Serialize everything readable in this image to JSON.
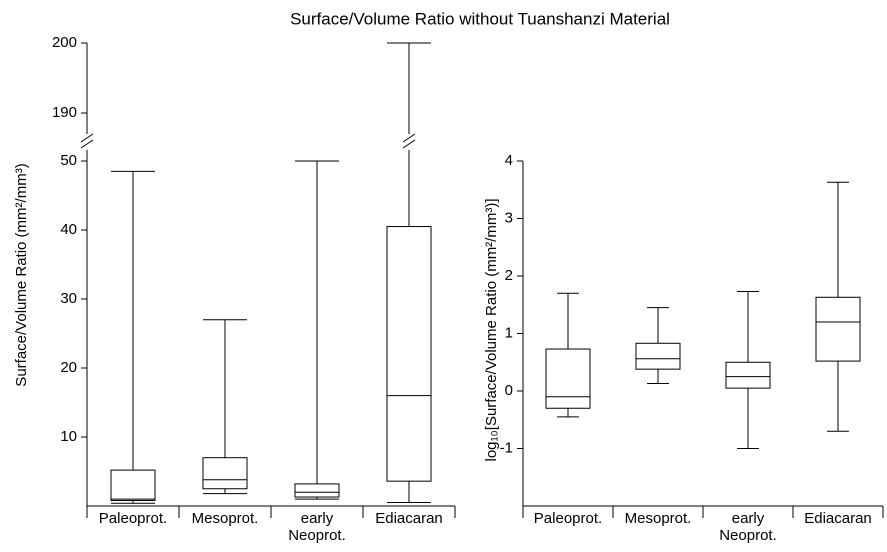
{
  "chart_data": [
    {
      "type": "box",
      "title": "Surface/Volume Ratio without Tuanshanzi Material",
      "ylabel": "Surface/Volume Ratio (mm²/mm³)",
      "categories": [
        "Paleoprot.",
        "Mesoprot.",
        "early Neoprot.",
        "Ediacaran"
      ],
      "min": [
        0.4,
        1.8,
        1.0,
        0.5
      ],
      "q1": [
        0.8,
        2.5,
        1.3,
        3.6
      ],
      "median": [
        1.0,
        3.8,
        2.0,
        16
      ],
      "q3": [
        5.2,
        7.0,
        3.2,
        40.5
      ],
      "max": [
        48.5,
        27,
        50,
        200
      ],
      "ylim": [
        0,
        200
      ],
      "axis_break": [
        50,
        190
      ],
      "yticks": [
        10,
        20,
        30,
        40,
        50,
        190,
        200
      ]
    },
    {
      "type": "box",
      "ylabel": "log₁₀[Surface/Volume Ratio (mm²/mm³)]",
      "categories": [
        "Paleoprot.",
        "Mesoprot.",
        "early Neoprot.",
        "Ediacaran"
      ],
      "min": [
        -0.45,
        0.13,
        -1.0,
        -0.7
      ],
      "q1": [
        -0.3,
        0.38,
        0.05,
        0.52
      ],
      "median": [
        -0.1,
        0.56,
        0.25,
        1.2
      ],
      "q3": [
        0.73,
        0.83,
        0.5,
        1.63
      ],
      "max": [
        1.7,
        1.45,
        1.73,
        3.63
      ],
      "ylim": [
        -2,
        4
      ],
      "yticks": [
        -1,
        0,
        1,
        2,
        3,
        4
      ]
    }
  ]
}
